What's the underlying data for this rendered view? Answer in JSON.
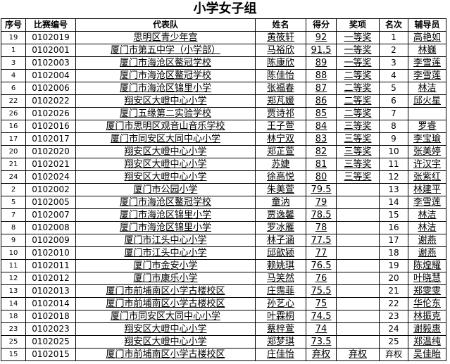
{
  "title": "小学女子组",
  "headers": [
    "序号",
    "比赛编号",
    "代表队",
    "姓名",
    "得分",
    "奖项",
    "名次",
    "辅导员"
  ],
  "rows": [
    [
      "19",
      "0102019",
      "思明区青少年宫",
      "黄筱轩",
      "92",
      "一等奖",
      "1",
      "高艳如"
    ],
    [
      "1",
      "0102001",
      "厦门市第五中学（小学部）",
      "马裕欣",
      "91.5",
      "一等奖",
      "2",
      "林巍"
    ],
    [
      "3",
      "0102003",
      "厦门市海沧区鳌冠学校",
      "陈康欣",
      "89",
      "一等奖",
      "3",
      "李雪莲"
    ],
    [
      "4",
      "0102004",
      "厦门市海沧区鳌冠学校",
      "陈佳怡",
      "88",
      "二等奖",
      "4",
      "李雪莲"
    ],
    [
      "6",
      "0102006",
      "厦门市海沧区锦里小学",
      "张福春",
      "87",
      "二等奖",
      "5",
      "林洁"
    ],
    [
      "22",
      "0102022",
      "翔安区大嶝中心小学",
      "郑芃媛",
      "86",
      "二等奖",
      "6",
      "邱火星"
    ],
    [
      "26",
      "0102026",
      "厦门五缘第二实验学校",
      "贾诗祁",
      "85",
      "二等奖",
      "7",
      ""
    ],
    [
      "16",
      "0102016",
      "厦门市思明区观音山音乐学校",
      "王子萱",
      "84",
      "三等奖",
      "8",
      "罗睿"
    ],
    [
      "17",
      "0102017",
      "厦门市同安区大同中心小学",
      "林宁双",
      "83",
      "三等奖",
      "9",
      "李宝瑜"
    ],
    [
      "20",
      "0102020",
      "翔安区大嶝中心小学",
      "郑芷萱",
      "82",
      "三等奖",
      "10",
      "张美婷"
    ],
    [
      "21",
      "0102021",
      "翔安区大嶝中心小学",
      "苏婕",
      "81",
      "三等奖",
      "11",
      "许汉宇"
    ],
    [
      "24",
      "0102024",
      "翔安区大嶝中心小学",
      "徐高悦",
      "80",
      "三等奖",
      "12",
      "张紫红"
    ],
    [
      "2",
      "0102002",
      "厦门市公园小学",
      "朱美萱",
      "79.5",
      "",
      "13",
      "林建平"
    ],
    [
      "5",
      "0102005",
      "厦门市海沧区鳌冠学校",
      "童汭",
      "79",
      "",
      "14",
      "李雪莲"
    ],
    [
      "7",
      "0102007",
      "厦门市海沧区锦里小学",
      "贾逸馨",
      "78.5",
      "",
      "15",
      "林洁"
    ],
    [
      "8",
      "0102008",
      "厦门市海沧区锦里小学",
      "罗冰雁",
      "78",
      "",
      "16",
      "林洁"
    ],
    [
      "9",
      "0102009",
      "厦门市江头中心小学",
      "林子涵",
      "77.5",
      "",
      "17",
      "谢燕"
    ],
    [
      "10",
      "0102010",
      "厦门市江头中心小学",
      "邱歆颍",
      "77",
      "",
      "18",
      "谢燕"
    ],
    [
      "11",
      "0102011",
      "厦门市金安小学",
      "赖姚琪",
      "76.5",
      "",
      "19",
      "陈煌耀"
    ],
    [
      "12",
      "0102012",
      "厦门市康乐小学",
      "马笑然",
      "76",
      "",
      "20",
      "叶晓慧"
    ],
    [
      "13",
      "0102013",
      "厦门市前埔南区小学古楼校区",
      "庄霈菲",
      "75.5",
      "",
      "21",
      "郑雯雯"
    ],
    [
      "14",
      "0102014",
      "厦门市前埔南区小学古楼校区",
      "孙艺心",
      "75",
      "",
      "22",
      "华伦东"
    ],
    [
      "18",
      "0102018",
      "厦门市同安区大同中心小学",
      "叶霖桐",
      "74.5",
      "",
      "23",
      "林振克"
    ],
    [
      "23",
      "0102023",
      "翔安区大嶝中心小学",
      "蔡梓萱",
      "74",
      "",
      "24",
      "谢毅惠"
    ],
    [
      "25",
      "0102025",
      "翔安区大嶝中心小学",
      "郑梦琪",
      "73.5",
      "",
      "25",
      "郑温纯"
    ],
    [
      "15",
      "0102015",
      "厦门市前埔南区小学古楼校区",
      "庄佳怡",
      "弃权",
      "弃权",
      "弃权",
      "吴佳眙"
    ]
  ]
}
